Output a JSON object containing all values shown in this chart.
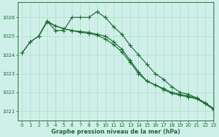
{
  "background_color": "#cff0e8",
  "grid_color": "#b0d8cc",
  "line_color": "#1a6b30",
  "title": "Graphe pression niveau de la mer (hPa)",
  "xlim": [
    -0.5,
    23
  ],
  "ylim": [
    1020.5,
    1026.8
  ],
  "yticks": [
    1021,
    1022,
    1023,
    1024,
    1025,
    1026
  ],
  "xticks": [
    0,
    1,
    2,
    3,
    4,
    5,
    6,
    7,
    8,
    9,
    10,
    11,
    12,
    13,
    14,
    15,
    16,
    17,
    18,
    19,
    20,
    21,
    22,
    23
  ],
  "series": [
    {
      "x": [
        0,
        1,
        2,
        3,
        4,
        5,
        6,
        7,
        8,
        9,
        10,
        11,
        12,
        13,
        14,
        15,
        16,
        17,
        18,
        19,
        20,
        21,
        22,
        23
      ],
      "y": [
        1024.1,
        1024.7,
        1025.0,
        1025.8,
        1025.3,
        1025.3,
        1026.0,
        1026.0,
        1026.0,
        1026.3,
        1026.0,
        1025.5,
        1025.1,
        1024.5,
        1024.0,
        1023.5,
        1023.0,
        1022.7,
        1022.3,
        1022.0,
        1021.9,
        1021.7,
        1021.4,
        1021.1
      ]
    },
    {
      "x": [
        0,
        1,
        2,
        3,
        4,
        5,
        6,
        7,
        8,
        9,
        10,
        11,
        12,
        13,
        14,
        15,
        16,
        17,
        18,
        19,
        20,
        21,
        22,
        23
      ],
      "y": [
        1024.1,
        1024.7,
        1025.0,
        1025.75,
        1025.55,
        1025.4,
        1025.3,
        1025.25,
        1025.2,
        1025.1,
        1025.0,
        1024.7,
        1024.3,
        1023.7,
        1023.1,
        1022.6,
        1022.4,
        1022.15,
        1021.95,
        1021.85,
        1021.75,
        1021.65,
        1021.4,
        1021.1
      ]
    },
    {
      "x": [
        2,
        3,
        4,
        5,
        6,
        7,
        8,
        9,
        10,
        11,
        12,
        13,
        14,
        15,
        16,
        17,
        18,
        19,
        20,
        21,
        22,
        23
      ],
      "y": [
        1025.0,
        1025.8,
        1025.55,
        1025.4,
        1025.3,
        1025.2,
        1025.15,
        1025.05,
        1024.85,
        1024.55,
        1024.15,
        1023.6,
        1023.0,
        1022.6,
        1022.4,
        1022.2,
        1022.0,
        1021.9,
        1021.8,
        1021.7,
        1021.45,
        1021.15
      ]
    }
  ],
  "marker": "+",
  "markersize": 4,
  "linewidth": 0.9,
  "tick_fontsize": 5.2,
  "xlabel_fontsize": 6.0
}
